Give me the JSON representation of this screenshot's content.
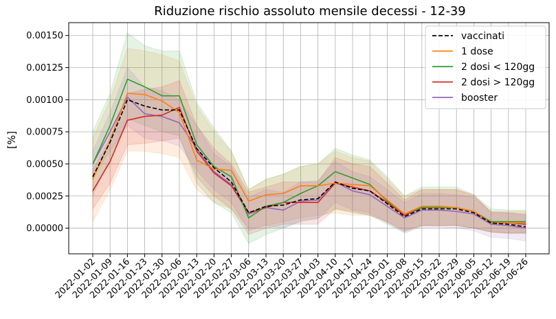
{
  "chart_data": {
    "type": "line",
    "title": "Riduzione rischio assoluto mensile decessi - 12-39",
    "xlabel": "",
    "ylabel": "[%]",
    "ylim": [
      -0.0002,
      0.0016
    ],
    "yticks": [
      0.0,
      0.00025,
      0.0005,
      0.00075,
      0.001,
      0.00125,
      0.0015
    ],
    "ytick_labels": [
      "0.00000",
      "0.00025",
      "0.00050",
      "0.00075",
      "0.00100",
      "0.00125",
      "0.00150"
    ],
    "grid": true,
    "legend_position": "top-right",
    "x": [
      "2022-01-02",
      "2022-01-09",
      "2022-01-16",
      "2022-01-23",
      "2022-01-30",
      "2022-02-06",
      "2022-02-13",
      "2022-02-20",
      "2022-02-27",
      "2022-03-06",
      "2022-03-13",
      "2022-03-20",
      "2022-03-27",
      "2022-04-03",
      "2022-04-10",
      "2022-04-17",
      "2022-04-24",
      "2022-05-01",
      "2022-05-08",
      "2022-05-15",
      "2022-05-22",
      "2022-05-29",
      "2022-06-05",
      "2022-06-12",
      "2022-06-19",
      "2022-06-26"
    ],
    "series": [
      {
        "name": "vaccinati",
        "color": "#000000",
        "dashed": true,
        "values": [
          0.0004,
          0.00067,
          0.001,
          0.00095,
          0.00092,
          0.00092,
          0.00062,
          0.00047,
          0.00036,
          0.00012,
          0.00017,
          0.00018,
          0.00022,
          0.00023,
          0.00036,
          0.00031,
          0.00029,
          0.00019,
          9e-05,
          0.00015,
          0.00015,
          0.00015,
          0.00012,
          4e-05,
          3e-05,
          1e-05
        ],
        "band": null
      },
      {
        "name": "1 dose",
        "color": "#ff7f0e",
        "dashed": false,
        "values": [
          0.00038,
          0.00068,
          0.00105,
          0.00104,
          0.00099,
          0.0009,
          0.00053,
          0.00046,
          0.00045,
          0.00021,
          0.00026,
          0.00027,
          0.00033,
          0.00033,
          0.00035,
          0.00034,
          0.00033,
          0.00022,
          0.00011,
          0.00017,
          0.00017,
          0.00016,
          0.00013,
          4e-05,
          4e-05,
          4e-05
        ],
        "band_lower": [
          5e-05,
          0.0003,
          0.0006,
          0.0006,
          0.00058,
          0.00055,
          0.0003,
          0.0002,
          0.00015,
          0.0,
          2e-05,
          5e-05,
          8e-05,
          0.0001,
          0.00012,
          0.0001,
          0.0001,
          5e-05,
          -2e-05,
          2e-05,
          2e-05,
          2e-05,
          0.0,
          -3e-05,
          -4e-05,
          -4e-05
        ],
        "band_upper": [
          0.0007,
          0.001,
          0.0014,
          0.00138,
          0.00135,
          0.0013,
          0.00095,
          0.00075,
          0.0006,
          0.0003,
          0.00038,
          0.00042,
          0.00048,
          0.0005,
          0.0006,
          0.00055,
          0.00052,
          0.00038,
          0.00025,
          0.0003,
          0.0003,
          0.0003,
          0.00025,
          0.00013,
          0.00013,
          0.00013
        ]
      },
      {
        "name": "2 dosi < 120gg",
        "color": "#2ca02c",
        "dashed": false,
        "values": [
          0.0005,
          0.0008,
          0.00116,
          0.0011,
          0.00103,
          0.00103,
          0.00065,
          0.00048,
          0.0004,
          8e-05,
          0.00017,
          0.0002,
          0.00027,
          0.00033,
          0.00044,
          0.00039,
          0.00034,
          0.00021,
          0.00011,
          0.00016,
          0.00016,
          0.00016,
          0.00013,
          5e-05,
          5e-05,
          5e-05
        ],
        "band_lower": [
          0.00025,
          0.00055,
          0.00085,
          0.0008,
          0.00075,
          0.00072,
          0.00035,
          0.0002,
          0.00012,
          -0.00012,
          -5e-05,
          0.0,
          5e-05,
          8e-05,
          0.00015,
          0.00012,
          0.0001,
          3e-05,
          -3e-05,
          2e-05,
          2e-05,
          2e-05,
          0.0,
          -3e-05,
          -4e-05,
          -4e-05
        ],
        "band_upper": [
          0.00075,
          0.00105,
          0.00152,
          0.00142,
          0.00138,
          0.00138,
          0.00098,
          0.00078,
          0.0006,
          0.0003,
          0.00038,
          0.00042,
          0.00048,
          0.0005,
          0.00062,
          0.00057,
          0.00053,
          0.0004,
          0.00025,
          0.00032,
          0.00032,
          0.00032,
          0.00026,
          0.00015,
          0.00014,
          0.00014
        ]
      },
      {
        "name": "2 dosi > 120gg",
        "color": "#d62728",
        "dashed": false,
        "values": [
          0.00029,
          0.00052,
          0.00084,
          0.00087,
          0.00088,
          0.00094,
          0.0006,
          0.00043,
          0.00033,
          0.00012,
          0.00016,
          0.0002,
          0.0002,
          0.0002,
          0.00035,
          0.00032,
          0.00029,
          0.0002,
          0.0001,
          0.00016,
          0.00016,
          0.00016,
          0.00013,
          4e-05,
          4e-05,
          3e-05
        ],
        "band_lower": [
          0.00015,
          0.00035,
          0.00065,
          0.00066,
          0.00068,
          0.0007,
          0.0004,
          0.00025,
          0.00015,
          -5e-05,
          0.0,
          3e-05,
          3e-05,
          3e-05,
          0.00015,
          0.00013,
          0.0001,
          5e-05,
          -2e-05,
          2e-05,
          2e-05,
          2e-05,
          0.0,
          -3e-05,
          -4e-05,
          -4e-05
        ],
        "band_upper": [
          0.00045,
          0.0007,
          0.00105,
          0.00108,
          0.0011,
          0.00115,
          0.0008,
          0.00062,
          0.0005,
          0.00028,
          0.00032,
          0.00036,
          0.00036,
          0.00036,
          0.00055,
          0.0005,
          0.00048,
          0.00035,
          0.00022,
          0.0003,
          0.0003,
          0.0003,
          0.00026,
          0.00012,
          0.00012,
          0.00011
        ]
      },
      {
        "name": "booster",
        "color": "#9467bd",
        "dashed": false,
        "values": [
          0.0005,
          0.00075,
          0.00102,
          0.00089,
          0.00087,
          0.00082,
          0.00062,
          0.00044,
          0.00034,
          0.00011,
          0.00016,
          0.00014,
          0.00021,
          0.00022,
          0.00036,
          0.00029,
          0.00026,
          0.00017,
          8e-05,
          0.00014,
          0.00014,
          0.00013,
          0.00011,
          3e-05,
          2e-05,
          0.0
        ],
        "band_lower": [
          0.0004,
          0.0006,
          0.0008,
          0.0007,
          0.00068,
          0.00064,
          0.00045,
          0.0003,
          0.0002,
          -2e-05,
          2e-05,
          0.0,
          6e-05,
          7e-05,
          0.0002,
          0.00014,
          0.00012,
          4e-05,
          -4e-05,
          1e-05,
          1e-05,
          0.0,
          -2e-05,
          -7e-05,
          -8e-05,
          -0.0001
        ],
        "band_upper": [
          0.0006,
          0.0009,
          0.00125,
          0.0011,
          0.00107,
          0.001,
          0.0008,
          0.00058,
          0.00048,
          0.00024,
          0.0003,
          0.00028,
          0.00036,
          0.00037,
          0.00052,
          0.00044,
          0.0004,
          0.0003,
          0.0002,
          0.00027,
          0.00027,
          0.00026,
          0.00024,
          0.00013,
          0.00012,
          0.0001
        ]
      }
    ]
  }
}
